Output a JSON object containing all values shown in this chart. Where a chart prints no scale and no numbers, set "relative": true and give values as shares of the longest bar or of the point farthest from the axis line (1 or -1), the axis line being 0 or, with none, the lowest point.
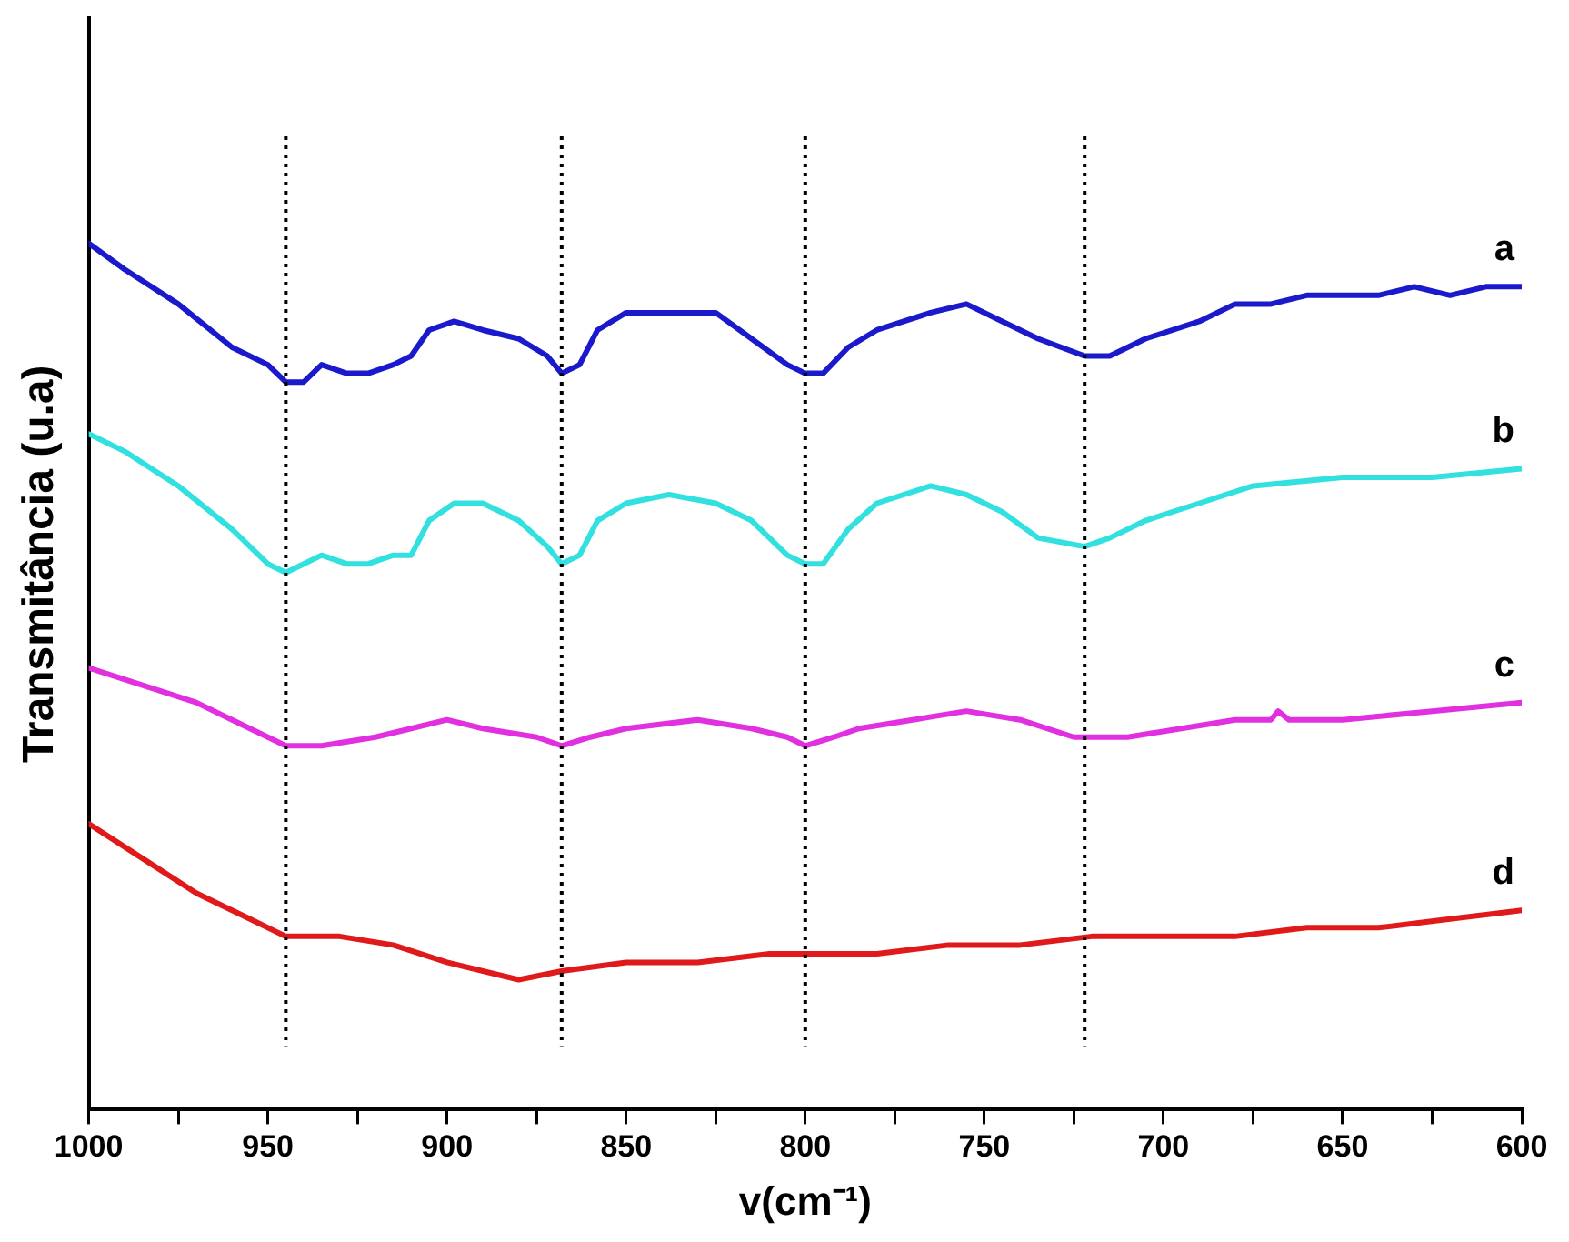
{
  "chart_data": {
    "type": "line",
    "xlabel": "v(cm⁻¹)",
    "ylabel": "Transmitância (u.a)",
    "relative": true,
    "xlim": [
      1000,
      600
    ],
    "xticks": [
      1000,
      {
        "value": 975,
        "label": null
      },
      950,
      {
        "value": 925,
        "label": null
      },
      900,
      {
        "value": 875,
        "label": null
      },
      850,
      {
        "value": 825,
        "label": null
      },
      800,
      {
        "value": 775,
        "label": null
      },
      750,
      {
        "value": 725,
        "label": null
      },
      700,
      {
        "value": 675,
        "label": null
      },
      650,
      {
        "value": 625,
        "label": null
      },
      600
    ],
    "grid": false,
    "legend": false,
    "marker": "none",
    "line_style": "solid",
    "ref_lines": [
      {
        "axis": "x",
        "value": 945,
        "color": "#000000",
        "line_style": "dotted"
      },
      {
        "axis": "x",
        "value": 868,
        "color": "#000000",
        "line_style": "dotted"
      },
      {
        "axis": "x",
        "value": 800,
        "color": "#000000",
        "line_style": "dotted"
      },
      {
        "axis": "x",
        "value": 722,
        "color": "#000000",
        "line_style": "dotted"
      }
    ],
    "series": [
      {
        "name": "a",
        "color": "#1a1acc",
        "x": [
          1000,
          990,
          975,
          960,
          950,
          945,
          940,
          935,
          928,
          922,
          915,
          910,
          905,
          898,
          890,
          880,
          872,
          868,
          863,
          858,
          850,
          835,
          825,
          815,
          805,
          800,
          795,
          788,
          780,
          765,
          755,
          745,
          735,
          722,
          715,
          705,
          690,
          680,
          670,
          660,
          650,
          640,
          630,
          620,
          610,
          600
        ],
        "values": [
          1.0,
          0.97,
          0.93,
          0.88,
          0.86,
          0.84,
          0.84,
          0.86,
          0.85,
          0.85,
          0.86,
          0.87,
          0.9,
          0.91,
          0.9,
          0.89,
          0.87,
          0.85,
          0.86,
          0.9,
          0.92,
          0.92,
          0.92,
          0.89,
          0.86,
          0.85,
          0.85,
          0.88,
          0.9,
          0.92,
          0.93,
          0.91,
          0.89,
          0.87,
          0.87,
          0.89,
          0.91,
          0.93,
          0.93,
          0.94,
          0.94,
          0.94,
          0.95,
          0.94,
          0.95,
          0.95
        ]
      },
      {
        "name": "b",
        "color": "#33e0e0",
        "x": [
          1000,
          990,
          975,
          960,
          950,
          945,
          940,
          935,
          928,
          922,
          915,
          910,
          905,
          898,
          890,
          880,
          872,
          868,
          863,
          858,
          850,
          838,
          825,
          815,
          805,
          800,
          795,
          788,
          780,
          765,
          755,
          745,
          735,
          722,
          715,
          705,
          690,
          675,
          650,
          625,
          600
        ],
        "values": [
          0.78,
          0.76,
          0.72,
          0.67,
          0.63,
          0.62,
          0.63,
          0.64,
          0.63,
          0.63,
          0.64,
          0.64,
          0.68,
          0.7,
          0.7,
          0.68,
          0.65,
          0.63,
          0.64,
          0.68,
          0.7,
          0.71,
          0.7,
          0.68,
          0.64,
          0.63,
          0.63,
          0.67,
          0.7,
          0.72,
          0.71,
          0.69,
          0.66,
          0.65,
          0.66,
          0.68,
          0.7,
          0.72,
          0.73,
          0.73,
          0.74
        ]
      },
      {
        "name": "c",
        "color": "#e030e0",
        "x": [
          1000,
          985,
          970,
          955,
          945,
          935,
          920,
          910,
          900,
          890,
          875,
          868,
          860,
          850,
          830,
          815,
          805,
          800,
          792,
          785,
          770,
          755,
          740,
          725,
          710,
          695,
          680,
          670,
          668,
          665,
          650,
          625,
          600
        ],
        "values": [
          0.51,
          0.49,
          0.47,
          0.44,
          0.42,
          0.42,
          0.43,
          0.44,
          0.45,
          0.44,
          0.43,
          0.42,
          0.43,
          0.44,
          0.45,
          0.44,
          0.43,
          0.42,
          0.43,
          0.44,
          0.45,
          0.46,
          0.45,
          0.43,
          0.43,
          0.44,
          0.45,
          0.45,
          0.46,
          0.45,
          0.45,
          0.46,
          0.47
        ]
      },
      {
        "name": "d",
        "color": "#e01a1a",
        "x": [
          1000,
          985,
          970,
          955,
          945,
          930,
          915,
          900,
          880,
          868,
          850,
          830,
          810,
          800,
          780,
          760,
          740,
          720,
          700,
          680,
          660,
          640,
          620,
          600
        ],
        "values": [
          0.33,
          0.29,
          0.25,
          0.22,
          0.2,
          0.2,
          0.19,
          0.17,
          0.15,
          0.16,
          0.17,
          0.17,
          0.18,
          0.18,
          0.18,
          0.19,
          0.19,
          0.2,
          0.2,
          0.2,
          0.21,
          0.21,
          0.22,
          0.23
        ]
      }
    ]
  }
}
